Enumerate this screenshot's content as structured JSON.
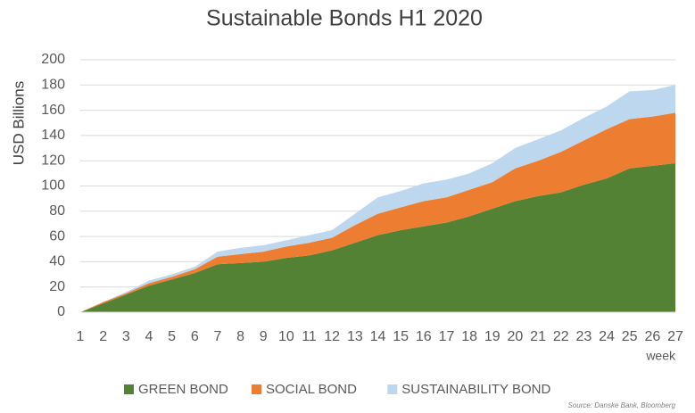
{
  "chart_data": {
    "type": "stacked_area",
    "title": "Sustainable Bonds H1 2020",
    "y_label": "USD Billions",
    "x_label": "week",
    "source": "Source: Danske Bank, Bloomberg",
    "x": [
      1,
      2,
      3,
      4,
      5,
      6,
      7,
      8,
      9,
      10,
      11,
      12,
      13,
      14,
      15,
      16,
      17,
      18,
      19,
      20,
      21,
      22,
      23,
      24,
      25,
      26,
      27
    ],
    "xlim": [
      1,
      27
    ],
    "xticks": [
      1,
      2,
      3,
      4,
      5,
      6,
      7,
      8,
      9,
      10,
      11,
      12,
      13,
      14,
      15,
      16,
      17,
      18,
      19,
      20,
      21,
      22,
      23,
      24,
      25,
      26,
      27
    ],
    "ylim": [
      0,
      200
    ],
    "yticks": [
      0,
      20,
      40,
      60,
      80,
      100,
      120,
      140,
      160,
      180,
      200
    ],
    "grid": true,
    "legend": "bottom",
    "series": [
      {
        "name": "GREEN BOND",
        "color": "#548235",
        "values": [
          0,
          7,
          14,
          21,
          26,
          31,
          38,
          39,
          40,
          43,
          45,
          49,
          55,
          61,
          65,
          68,
          71,
          76,
          82,
          88,
          92,
          95,
          101,
          106,
          114,
          116,
          118
        ]
      },
      {
        "name": "SOCIAL BOND",
        "color": "#ed7d31",
        "values": [
          0,
          1,
          1,
          2,
          2,
          3,
          6,
          7,
          8,
          9,
          10,
          10,
          14,
          17,
          18,
          20,
          20,
          21,
          21,
          26,
          28,
          32,
          35,
          39,
          39,
          39,
          40
        ]
      },
      {
        "name": "SUSTAINABILITY BOND",
        "color": "#bdd7ee",
        "values": [
          0,
          0,
          1,
          2,
          2,
          2,
          4,
          5,
          5,
          5,
          6,
          6,
          9,
          13,
          13,
          14,
          14,
          13,
          15,
          16,
          17,
          17,
          18,
          18,
          22,
          21,
          22
        ]
      }
    ]
  }
}
